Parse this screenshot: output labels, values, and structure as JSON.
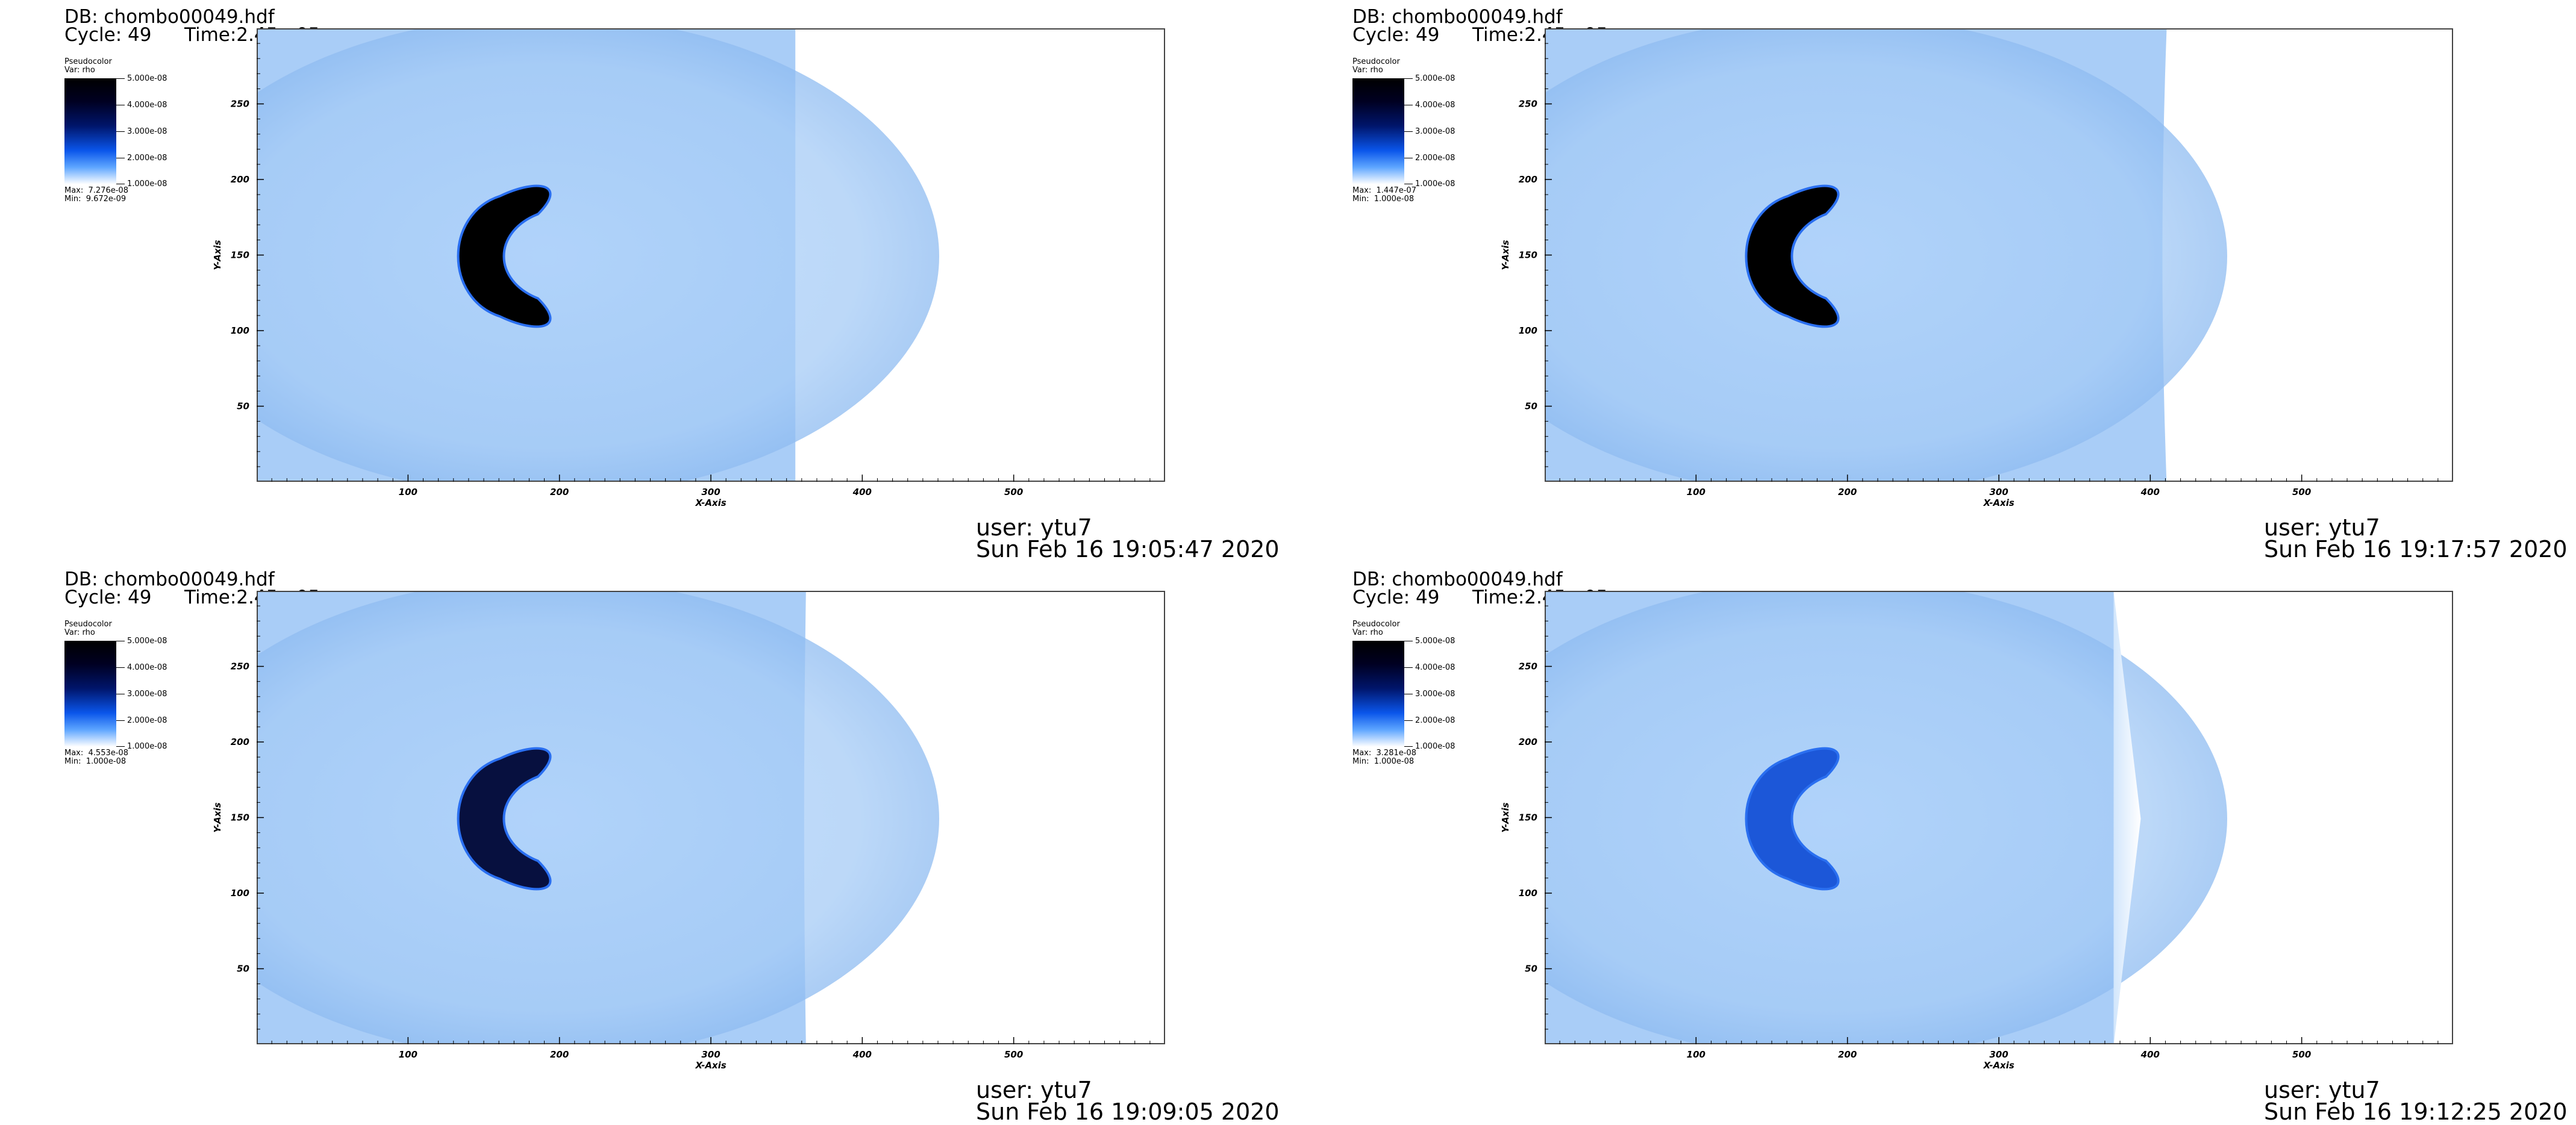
{
  "colors": {
    "domain_blue": "#a9cdf7",
    "colorbar_top": "#000000",
    "colorbar_bottom": "#ffffff",
    "axis_color": "#444444"
  },
  "panels": [
    {
      "db": "DB: chombo00049.hdf",
      "cycle": "Cycle: 49",
      "time": "Time:2.45e-05",
      "plot_label": "Pseudocolor",
      "var": "Var: rho",
      "ticks": [
        "5.000e-08",
        "4.000e-08",
        "3.000e-08",
        "2.000e-08",
        "1.000e-08"
      ],
      "max": "Max:  7.276e-08",
      "min": "Min:  9.672e-09",
      "user": "user: ytu7",
      "date": "Sun Feb 16 19:05:47 2020"
    },
    {
      "db": "DB: chombo00049.hdf",
      "cycle": "Cycle: 49",
      "time": "Time:2.45e-05",
      "plot_label": "Pseudocolor",
      "var": "Var: rho",
      "ticks": [
        "5.000e-08",
        "4.000e-08",
        "3.000e-08",
        "2.000e-08",
        "1.000e-08"
      ],
      "max": "Max:  1.447e-07",
      "min": "Min:  1.000e-08",
      "user": "user: ytu7",
      "date": "Sun Feb 16 19:17:57 2020"
    },
    {
      "db": "DB: chombo00049.hdf",
      "cycle": "Cycle: 49",
      "time": "Time:2.45e-05",
      "plot_label": "Pseudocolor",
      "var": "Var: rho",
      "ticks": [
        "5.000e-08",
        "4.000e-08",
        "3.000e-08",
        "2.000e-08",
        "1.000e-08"
      ],
      "max": "Max:  4.553e-08",
      "min": "Min:  1.000e-08",
      "user": "user: ytu7",
      "date": "Sun Feb 16 19:09:05 2020"
    },
    {
      "db": "DB: chombo00049.hdf",
      "cycle": "Cycle: 49",
      "time": "Time:2.45e-05",
      "plot_label": "Pseudocolor",
      "var": "Var: rho",
      "ticks": [
        "5.000e-08",
        "4.000e-08",
        "3.000e-08",
        "2.000e-08",
        "1.000e-08"
      ],
      "max": "Max:  3.281e-08",
      "min": "Min:  1.000e-08",
      "user": "user: ytu7",
      "date": "Sun Feb 16 19:12:25 2020"
    }
  ],
  "chart_data": [
    {
      "type": "heatmap",
      "variable": "rho",
      "xlabel": "X-Axis",
      "ylabel": "Y-Axis",
      "xlim": [
        0,
        600
      ],
      "ylim": [
        0,
        300
      ],
      "xticks": [
        "100",
        "200",
        "300",
        "400",
        "500"
      ],
      "yticks": [
        "50",
        "100",
        "150",
        "200",
        "250"
      ],
      "colorbar_range": [
        1e-08,
        5e-08
      ],
      "domain_edge_x": 355,
      "data_max": 7.276e-08,
      "data_min": 9.672e-09
    },
    {
      "type": "heatmap",
      "variable": "rho",
      "xlabel": "X-Axis",
      "ylabel": "Y-Axis",
      "xlim": [
        0,
        600
      ],
      "ylim": [
        0,
        300
      ],
      "xticks": [
        "100",
        "200",
        "300",
        "400",
        "500"
      ],
      "yticks": [
        "50",
        "100",
        "150",
        "200",
        "250"
      ],
      "colorbar_range": [
        1e-08,
        5e-08
      ],
      "domain_edge_x": 410,
      "data_max": 1.447e-07,
      "data_min": 1e-08
    },
    {
      "type": "heatmap",
      "variable": "rho",
      "xlabel": "X-Axis",
      "ylabel": "Y-Axis",
      "xlim": [
        0,
        600
      ],
      "ylim": [
        0,
        300
      ],
      "xticks": [
        "100",
        "200",
        "300",
        "400",
        "500"
      ],
      "yticks": [
        "50",
        "100",
        "150",
        "200",
        "250"
      ],
      "colorbar_range": [
        1e-08,
        5e-08
      ],
      "domain_edge_x": 362,
      "data_max": 4.553e-08,
      "data_min": 1e-08
    },
    {
      "type": "heatmap",
      "variable": "rho",
      "xlabel": "X-Axis",
      "ylabel": "Y-Axis",
      "xlim": [
        0,
        600
      ],
      "ylim": [
        0,
        300
      ],
      "xticks": [
        "100",
        "200",
        "300",
        "400",
        "500"
      ],
      "yticks": [
        "50",
        "100",
        "150",
        "200",
        "250"
      ],
      "colorbar_range": [
        1e-08,
        5e-08
      ],
      "domain_edge_x": 375,
      "data_max": 3.281e-08,
      "data_min": 1e-08
    }
  ]
}
